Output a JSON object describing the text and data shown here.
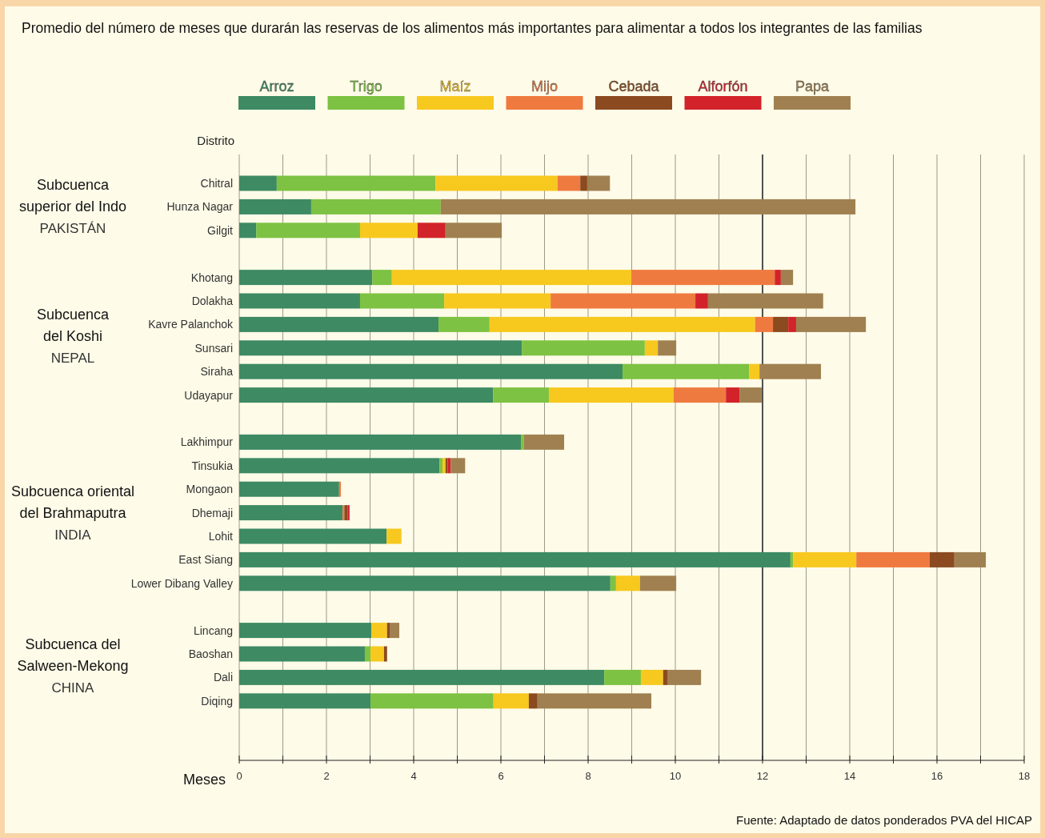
{
  "chart_data": {
    "type": "bar",
    "orientation": "horizontal",
    "stacked": true,
    "title": "Promedio del número de meses que durarán las reservas de los alimentos más importantes para alimentar a todos los integrantes de las familias",
    "xlabel": "Meses",
    "ylabel": "Distrito",
    "categories": [
      "Chitral",
      "Hunza Nagar",
      "Gilgit",
      null,
      "Khotang",
      "Dolakha",
      "Kavre Palanchok",
      "Sunsari",
      "Siraha",
      "Udayapur",
      null,
      "Lakhimpur",
      "Tinsukia",
      "Mongaon",
      "Dhemaji",
      "Lohit",
      "East Siang",
      "Lower Dibang Valley",
      null,
      "Lincang",
      "Baoshan",
      "Dali",
      "Diqing"
    ],
    "series": [
      {
        "name": "Arroz",
        "color": "#3d8a63",
        "values": [
          0.86,
          1.65,
          0.39,
          null,
          3.05,
          2.77,
          4.57,
          6.48,
          8.79,
          5.82,
          null,
          6.46,
          4.59,
          2.29,
          2.37,
          3.38,
          12.64,
          8.51,
          null,
          3.03,
          2.88,
          8.37,
          3.01
        ]
      },
      {
        "name": "Trigo",
        "color": "#7dc242",
        "values": [
          3.64,
          2.97,
          2.38,
          null,
          0.45,
          1.93,
          1.17,
          2.82,
          2.9,
          1.28,
          null,
          0.07,
          0.07,
          0,
          0,
          0,
          0.06,
          0.13,
          null,
          0,
          0.13,
          0.84,
          2.82
        ]
      },
      {
        "name": "Maíz",
        "color": "#f7c81e",
        "values": [
          2.8,
          0,
          1.32,
          null,
          5.49,
          2.44,
          6.09,
          0.3,
          0.24,
          2.86,
          null,
          0,
          0.07,
          0,
          0,
          0.34,
          1.45,
          0.55,
          null,
          0.36,
          0.31,
          0.51,
          0.81
        ]
      },
      {
        "name": "Mijo",
        "color": "#ef7a3f",
        "values": [
          0.52,
          0,
          0,
          null,
          3.29,
          3.32,
          0.41,
          0,
          0,
          1.2,
          null,
          0,
          0,
          0.04,
          0.04,
          0,
          1.68,
          0,
          null,
          0,
          0,
          0,
          0
        ]
      },
      {
        "name": "Cebada",
        "color": "#8b4a1f",
        "values": [
          0.16,
          0,
          0,
          null,
          0,
          0,
          0.35,
          0,
          0,
          0,
          null,
          0,
          0.05,
          0,
          0.08,
          0,
          0.57,
          0,
          null,
          0.06,
          0.07,
          0.11,
          0.2
        ]
      },
      {
        "name": "Alforfón",
        "color": "#d2232a",
        "values": [
          0,
          0,
          0.64,
          null,
          0.14,
          0.29,
          0.18,
          0,
          0,
          0.31,
          null,
          0,
          0.07,
          0,
          0.04,
          0,
          0,
          0,
          null,
          0,
          0,
          0,
          0
        ]
      },
      {
        "name": "Papa",
        "color": "#a08050",
        "values": [
          0.52,
          9.51,
          1.29,
          null,
          0.28,
          2.64,
          1.6,
          0.42,
          1.41,
          0.51,
          null,
          0.92,
          0.33,
          0,
          0,
          0,
          0.72,
          0.83,
          null,
          0.22,
          0,
          0.76,
          2.61
        ]
      }
    ],
    "xlim": [
      0,
      18
    ],
    "xticks": [
      0,
      {
        "value": 1,
        "label": null
      },
      2,
      {
        "value": 3,
        "label": null
      },
      4,
      {
        "value": 5,
        "label": null
      },
      6,
      {
        "value": 7,
        "label": null
      },
      8,
      {
        "value": 9,
        "label": null
      },
      10,
      {
        "value": 11,
        "label": null
      },
      12,
      {
        "value": 13,
        "label": null
      },
      14,
      {
        "value": 15,
        "label": null
      },
      16,
      {
        "value": 17,
        "label": null
      },
      18
    ],
    "grid": "x",
    "legend": "top",
    "ref_lines": [
      {
        "axis": "x",
        "value": 12,
        "color": "#333333"
      }
    ],
    "annotations": [
      "Subcuenca\nsuperior del Indo\nPAKISTÁN",
      "Subcuenca\ndel Koshi\nNEPAL",
      "Subcuenca oriental\ndel Brahmaputra\nINDIA",
      "Subcuenca del\nSalween-Mekong\nCHINA",
      "Fuente: Adaptado de datos ponderados PVA del HICAP"
    ]
  }
}
